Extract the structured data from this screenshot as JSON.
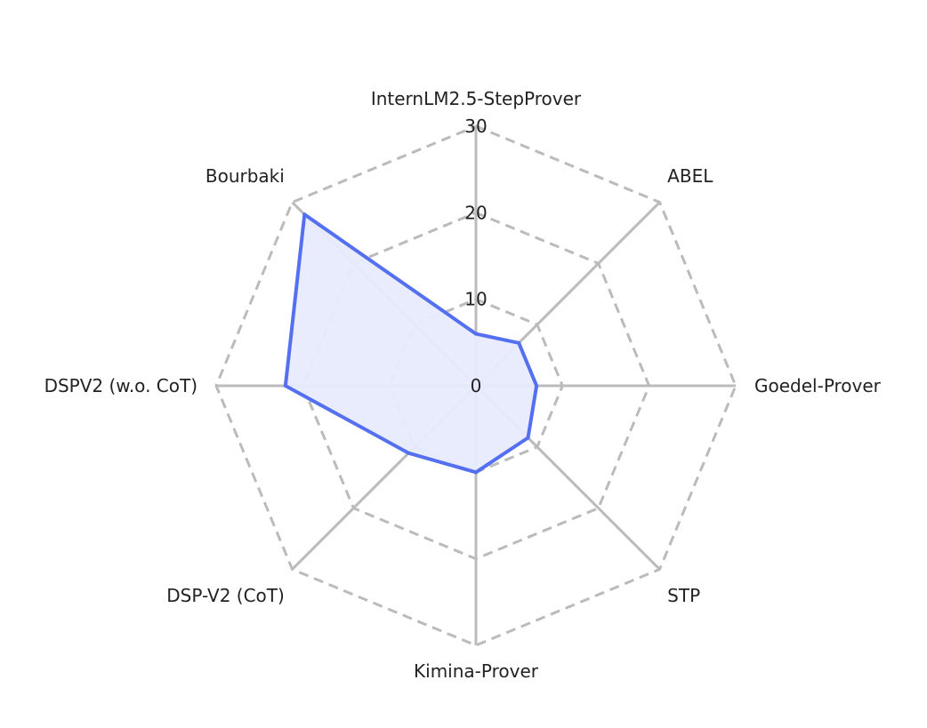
{
  "chart_data": {
    "type": "radar",
    "axes": [
      "InternLM2.5-StepProver",
      "ABEL",
      "Goedel-Prover",
      "STP",
      "Kimina-Prover",
      "DSP-V2 (CoT)",
      "DSPV2 (w.o. CoT)",
      "Bourbaki"
    ],
    "series": [
      {
        "values": [
          6,
          7,
          7,
          8.5,
          10,
          11,
          22,
          28
        ],
        "color": "#5470f0",
        "fill": "#e8ebfd"
      }
    ],
    "rlim": [
      0,
      30
    ],
    "ticks": [
      "0",
      "10",
      "20",
      "30"
    ],
    "tick_values": [
      0,
      10,
      20,
      30
    ],
    "grid": "dashed",
    "grid_color": "#bbbbbb",
    "spoke_color": "#bbbbbb"
  }
}
